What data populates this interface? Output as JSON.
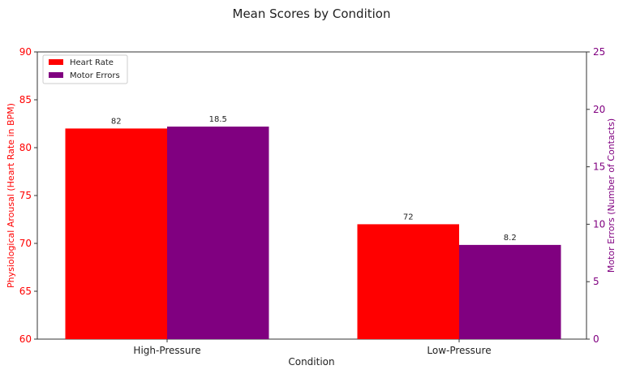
{
  "chart_data": {
    "type": "bar",
    "title": "Mean Scores by Condition",
    "xlabel": "Condition",
    "categories": [
      "High-Pressure",
      "Low-Pressure"
    ],
    "series": [
      {
        "name": "Heart Rate",
        "axis": "left",
        "color": "#ff0000",
        "values": [
          82,
          72
        ],
        "labels": [
          "82",
          "72"
        ]
      },
      {
        "name": "Motor Errors",
        "axis": "right",
        "color": "#800080",
        "values": [
          18.5,
          8.2
        ],
        "labels": [
          "18.5",
          "8.2"
        ]
      }
    ],
    "y_left": {
      "label": "Physiological Arousal (Heart Rate in BPM)",
      "color": "#ff0000",
      "lim": [
        60,
        90
      ],
      "ticks": [
        "60",
        "65",
        "70",
        "75",
        "80",
        "85",
        "90"
      ]
    },
    "y_right": {
      "label": "Motor Errors (Number of Contacts)",
      "color": "#800080",
      "lim": [
        0,
        25
      ],
      "ticks": [
        "0",
        "5",
        "10",
        "15",
        "20",
        "25"
      ]
    },
    "legend": "top-left",
    "grid": false
  }
}
